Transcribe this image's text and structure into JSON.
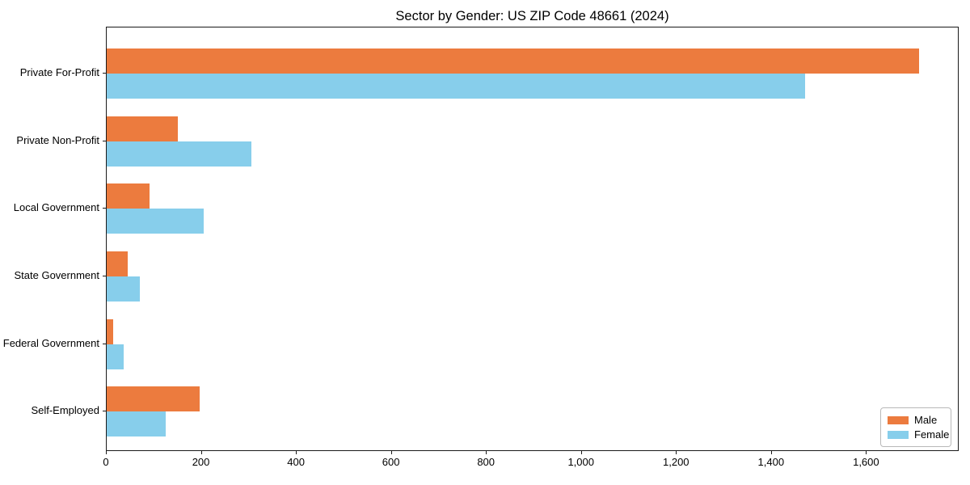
{
  "chart_data": {
    "type": "bar",
    "orientation": "horizontal",
    "title": "Sector by Gender: US ZIP Code 48661 (2024)",
    "categories": [
      "Private For-Profit",
      "Private Non-Profit",
      "Local Government",
      "State Government",
      "Federal Government",
      "Self-Employed"
    ],
    "series": [
      {
        "name": "Male",
        "color": "#ec7b3e",
        "values": [
          1710,
          150,
          90,
          45,
          13,
          195
        ]
      },
      {
        "name": "Female",
        "color": "#87ceeb",
        "values": [
          1470,
          305,
          205,
          70,
          35,
          125
        ]
      }
    ],
    "xlabel": "",
    "ylabel": "",
    "xlim": [
      0,
      1795
    ],
    "xticks": [
      0,
      200,
      400,
      600,
      800,
      1000,
      1200,
      1400,
      1600
    ],
    "xtick_labels": [
      "0",
      "200",
      "400",
      "600",
      "800",
      "1,000",
      "1,200",
      "1,400",
      "1,600"
    ],
    "grid": false,
    "legend": {
      "position": "lower right",
      "entries": [
        "Male",
        "Female"
      ]
    }
  }
}
